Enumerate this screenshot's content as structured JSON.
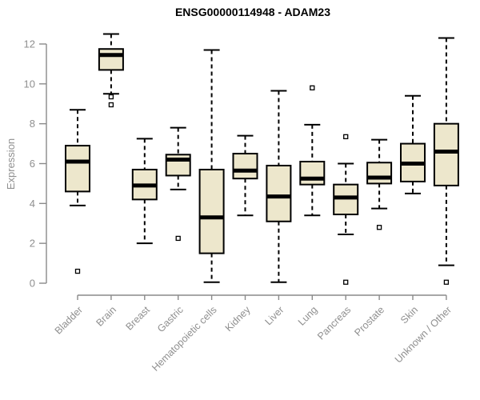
{
  "chart_data": {
    "type": "box",
    "title": "ENSG00000114948 - ADAM23",
    "ylabel": "Expression",
    "xlabel": "",
    "ylim": [
      0,
      12
    ],
    "yticks": [
      0,
      2,
      4,
      6,
      8,
      10,
      12
    ],
    "grid": false,
    "legend": "none",
    "xlabel_rotation_deg": 45,
    "style": {
      "box_fill": "#ede7cc",
      "box_border": "#000000",
      "median_color": "#000000",
      "whisker_color": "#000000",
      "outlier_color": "#000000",
      "axis_color": "#8a8a8a",
      "label_color": "#8f8f8f",
      "title_color": "#000000",
      "background": "#ffffff"
    },
    "categories": [
      "Bladder",
      "Brain",
      "Breast",
      "Gastric",
      "Hematopoietic cells",
      "Kidney",
      "Liver",
      "Lung",
      "Pancreas",
      "Prostate",
      "Skin",
      "Unknown / Other"
    ],
    "series": [
      {
        "category": "Bladder",
        "whisker_low": 3.9,
        "q1": 4.6,
        "median": 6.1,
        "q3": 6.9,
        "whisker_high": 8.7,
        "outliers": [
          0.6
        ]
      },
      {
        "category": "Brain",
        "whisker_low": 9.5,
        "q1": 10.7,
        "median": 11.45,
        "q3": 11.75,
        "whisker_high": 12.5,
        "outliers": [
          9.35,
          8.95
        ]
      },
      {
        "category": "Breast",
        "whisker_low": 2.0,
        "q1": 4.2,
        "median": 4.9,
        "q3": 5.7,
        "whisker_high": 7.25,
        "outliers": []
      },
      {
        "category": "Gastric",
        "whisker_low": 4.7,
        "q1": 5.4,
        "median": 6.2,
        "q3": 6.45,
        "whisker_high": 7.8,
        "outliers": [
          2.25
        ]
      },
      {
        "category": "Hematopoietic cells",
        "whisker_low": 0.05,
        "q1": 1.5,
        "median": 3.3,
        "q3": 5.7,
        "whisker_high": 11.7,
        "outliers": []
      },
      {
        "category": "Kidney",
        "whisker_low": 3.4,
        "q1": 5.25,
        "median": 5.65,
        "q3": 6.5,
        "whisker_high": 7.4,
        "outliers": []
      },
      {
        "category": "Liver",
        "whisker_low": 0.05,
        "q1": 3.1,
        "median": 4.35,
        "q3": 5.9,
        "whisker_high": 9.65,
        "outliers": []
      },
      {
        "category": "Lung",
        "whisker_low": 3.4,
        "q1": 4.95,
        "median": 5.25,
        "q3": 6.1,
        "whisker_high": 7.95,
        "outliers": [
          9.8
        ]
      },
      {
        "category": "Pancreas",
        "whisker_low": 2.45,
        "q1": 3.45,
        "median": 4.3,
        "q3": 4.95,
        "whisker_high": 6.0,
        "outliers": [
          7.35,
          0.05
        ]
      },
      {
        "category": "Prostate",
        "whisker_low": 3.75,
        "q1": 5.0,
        "median": 5.3,
        "q3": 6.05,
        "whisker_high": 7.2,
        "outliers": [
          2.8
        ]
      },
      {
        "category": "Skin",
        "whisker_low": 4.5,
        "q1": 5.1,
        "median": 6.0,
        "q3": 7.0,
        "whisker_high": 9.4,
        "outliers": []
      },
      {
        "category": "Unknown / Other",
        "whisker_low": 0.9,
        "q1": 4.9,
        "median": 6.6,
        "q3": 8.0,
        "whisker_high": 12.3,
        "outliers": [
          0.05
        ]
      }
    ]
  }
}
